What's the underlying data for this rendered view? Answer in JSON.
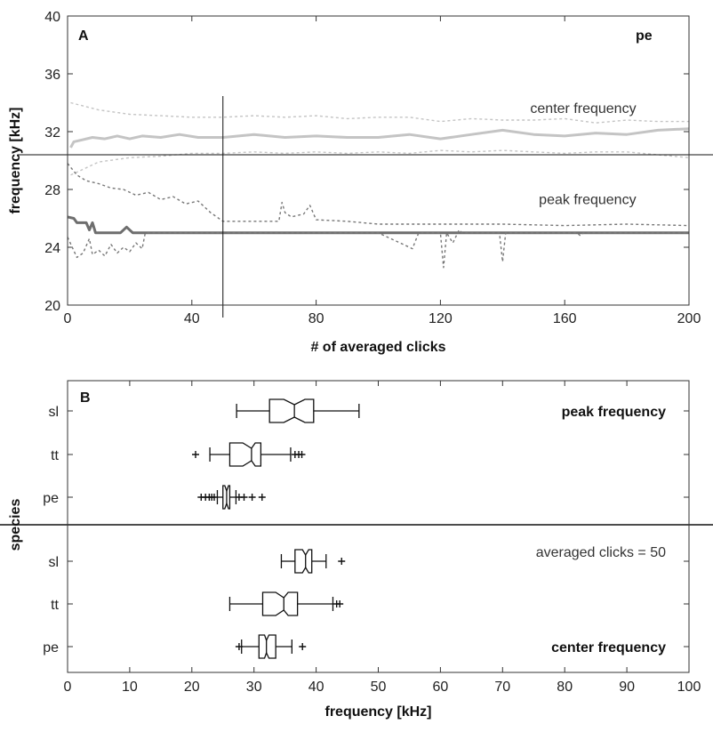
{
  "chart_data": [
    {
      "type": "line",
      "panel_label": "A",
      "species_label": "pe",
      "xlabel": "# of averaged clicks",
      "ylabel": "frequency [kHz]",
      "xlim": [
        0,
        200
      ],
      "ylim": [
        20,
        40
      ],
      "x_ticks": [
        0,
        40,
        80,
        120,
        160,
        200
      ],
      "y_ticks": [
        20,
        24,
        28,
        32,
        36,
        40
      ],
      "crosshair": {
        "x": 50,
        "y": 30.4
      },
      "annotations": [
        {
          "text": "center frequency",
          "x": 183,
          "y": 33.3
        },
        {
          "text": "peak frequency",
          "x": 183,
          "y": 27.0
        }
      ],
      "series": [
        {
          "role": "center-median",
          "color": "#c4c4c4",
          "style": "solid",
          "x": [
            1,
            2,
            4,
            8,
            12,
            16,
            20,
            24,
            30,
            36,
            42,
            50,
            60,
            70,
            80,
            90,
            100,
            110,
            120,
            130,
            140,
            150,
            160,
            170,
            180,
            190,
            200
          ],
          "y": [
            30.9,
            31.3,
            31.4,
            31.6,
            31.5,
            31.7,
            31.5,
            31.7,
            31.6,
            31.8,
            31.6,
            31.6,
            31.8,
            31.6,
            31.7,
            31.6,
            31.6,
            31.8,
            31.5,
            31.8,
            32.1,
            31.8,
            31.7,
            31.9,
            31.8,
            32.1,
            32.2
          ]
        },
        {
          "role": "center-upper",
          "color": "#c4c4c4",
          "style": "dotted",
          "x": [
            1,
            10,
            20,
            30,
            40,
            50,
            60,
            70,
            80,
            90,
            100,
            110,
            120,
            130,
            140,
            150,
            160,
            170,
            180,
            190,
            200
          ],
          "y": [
            34.0,
            33.5,
            33.2,
            33.1,
            33.0,
            33.0,
            33.1,
            33.0,
            33.1,
            32.9,
            33.0,
            33.0,
            32.7,
            32.9,
            32.8,
            32.8,
            32.9,
            32.6,
            32.8,
            32.7,
            32.7
          ]
        },
        {
          "role": "center-lower",
          "color": "#c4c4c4",
          "style": "dotted",
          "x": [
            1,
            5,
            10,
            20,
            30,
            40,
            50,
            60,
            70,
            80,
            90,
            100,
            110,
            120,
            130,
            140,
            150,
            160,
            170,
            180,
            190,
            200
          ],
          "y": [
            29.0,
            29.4,
            29.9,
            30.2,
            30.3,
            30.5,
            30.5,
            30.6,
            30.5,
            30.6,
            30.5,
            30.6,
            30.5,
            30.7,
            30.6,
            30.7,
            30.6,
            30.5,
            30.6,
            30.6,
            30.4,
            30.2
          ]
        },
        {
          "role": "peak-median",
          "color": "#6e6e6e",
          "style": "solid",
          "x": [
            0,
            2,
            3,
            6,
            7,
            8,
            9,
            10,
            17,
            19,
            21,
            30,
            50,
            100,
            150,
            200
          ],
          "y": [
            26.1,
            26.0,
            25.7,
            25.7,
            25.2,
            25.7,
            25.0,
            25.0,
            25.0,
            25.4,
            25.0,
            25.0,
            25.0,
            25.0,
            25.0,
            25.0
          ]
        },
        {
          "role": "peak-upper",
          "color": "#777777",
          "style": "dotted",
          "x": [
            0,
            3,
            6,
            10,
            14,
            18,
            22,
            26,
            30,
            34,
            38,
            42,
            46,
            50,
            60,
            68,
            69,
            70,
            72,
            76,
            78,
            80,
            90,
            100,
            120,
            140,
            160,
            180,
            200
          ],
          "y": [
            29.8,
            29.0,
            28.6,
            28.4,
            28.1,
            28.0,
            27.6,
            27.8,
            27.3,
            27.5,
            27.0,
            27.2,
            26.4,
            25.8,
            25.8,
            25.8,
            27.1,
            26.4,
            26.1,
            26.3,
            26.9,
            25.9,
            25.8,
            25.6,
            25.6,
            25.6,
            25.5,
            25.6,
            25.5
          ]
        },
        {
          "role": "peak-lower",
          "color": "#777777",
          "style": "dotted",
          "x": [
            0,
            3,
            5,
            7,
            8,
            10,
            12,
            14,
            16,
            18,
            20,
            22,
            24,
            25,
            100,
            110,
            111,
            113,
            120,
            121,
            122,
            124,
            126,
            127,
            139,
            140,
            141,
            164,
            165,
            166,
            200
          ],
          "y": [
            24.7,
            23.3,
            23.6,
            24.6,
            23.5,
            23.8,
            23.4,
            24.2,
            23.6,
            24.0,
            23.7,
            24.3,
            23.9,
            25.0,
            25.0,
            24.0,
            23.9,
            25.0,
            25.0,
            22.6,
            25.0,
            24.3,
            25.2,
            25.0,
            25.0,
            23.0,
            25.0,
            25.0,
            24.8,
            25.0,
            25.0
          ]
        }
      ]
    },
    {
      "type": "boxplot",
      "panel_label": "B",
      "xlabel": "frequency [kHz]",
      "ylabel": "species",
      "xlim": [
        0,
        100
      ],
      "x_ticks": [
        0,
        10,
        20,
        30,
        40,
        50,
        60,
        70,
        80,
        90,
        100
      ],
      "groups": [
        {
          "label": "peak frequency",
          "boxes": [
            {
              "species": "sl",
              "whisker_low": 27.2,
              "q1": 32.5,
              "notch_low": 34.8,
              "median": 36.5,
              "notch_high": 38.2,
              "q3": 39.6,
              "whisker_high": 46.9,
              "outliers": []
            },
            {
              "species": "tt",
              "whisker_low": 22.9,
              "q1": 26.1,
              "notch_low": 28.2,
              "median": 29.6,
              "notch_high": 30.2,
              "q3": 31.1,
              "whisker_high": 35.9,
              "outliers": [
                20.6,
                36.6,
                37.2,
                37.7
              ]
            },
            {
              "species": "pe",
              "whisker_low": 24.1,
              "q1": 25.0,
              "notch_low": 25.3,
              "median": 25.6,
              "notch_high": 25.9,
              "q3": 26.1,
              "whisker_high": 27.1,
              "outliers": [
                21.5,
                22.2,
                22.8,
                23.2,
                23.6,
                27.6,
                28.4,
                29.7,
                31.3
              ]
            }
          ]
        },
        {
          "label": "center frequency",
          "note": "averaged clicks = 50",
          "boxes": [
            {
              "species": "sl",
              "whisker_low": 34.4,
              "q1": 36.6,
              "notch_low": 37.8,
              "median": 38.3,
              "notch_high": 38.8,
              "q3": 39.3,
              "whisker_high": 41.6,
              "outliers": [
                44.1
              ]
            },
            {
              "species": "tt",
              "whisker_low": 26.1,
              "q1": 31.4,
              "notch_low": 33.5,
              "median": 34.8,
              "notch_high": 35.5,
              "q3": 37.0,
              "whisker_high": 42.7,
              "outliers": [
                43.3,
                43.8
              ]
            },
            {
              "species": "pe",
              "whisker_low": 28.0,
              "q1": 30.8,
              "notch_low": 31.7,
              "median": 32.0,
              "notch_high": 32.4,
              "q3": 33.5,
              "whisker_high": 36.1,
              "outliers": [
                27.6,
                37.8
              ]
            }
          ]
        }
      ]
    }
  ]
}
